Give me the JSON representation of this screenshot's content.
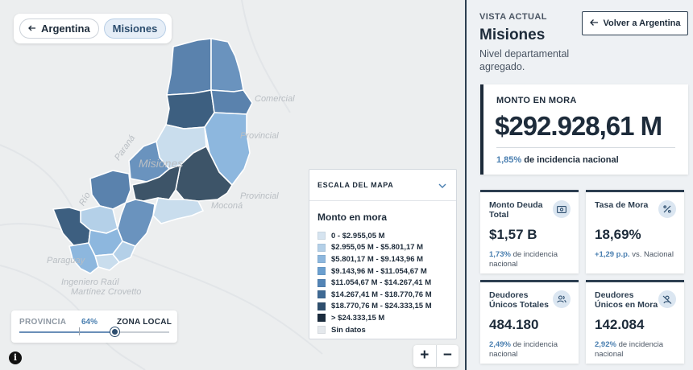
{
  "breadcrumb": {
    "country": "Argentina",
    "province": "Misiones"
  },
  "map_labels": {
    "a": "Comercial",
    "b": "Provincial",
    "c": "Provincial",
    "d": "Moconá",
    "e": "Paraná",
    "f": "Misiones",
    "g": "Río",
    "h": "Paraguay",
    "i": "Ingeniero Raúl",
    "j": "Martínez Crovetto"
  },
  "slider": {
    "left_label": "PROVINCIA",
    "value": "64%",
    "value_fraction": 0.64,
    "right_label": "ZONA LOCAL"
  },
  "zoom": {
    "in": "+",
    "out": "−"
  },
  "info": "i",
  "legend": {
    "header": "ESCALA DEL MAPA",
    "title": "Monto en mora",
    "items": [
      {
        "label": "0 - $2.955,05 M",
        "color": "#d6e4f0"
      },
      {
        "label": "$2.955,05 M - $5.801,17 M",
        "color": "#b4d0e8"
      },
      {
        "label": "$5.801,17 M - $9.143,96 M",
        "color": "#8db7de"
      },
      {
        "label": "$9.143,96 M - $11.054,67 M",
        "color": "#6b9fcf"
      },
      {
        "label": "$11.054,67 M - $14.267,41 M",
        "color": "#5384b5"
      },
      {
        "label": "$14.267,41 M - $18.770,76 M",
        "color": "#3f6a94"
      },
      {
        "label": "$18.770,76 M - $24.333,15 M",
        "color": "#2f4f6e"
      },
      {
        "label": "> $24.333,15 M",
        "color": "#1b2c3e"
      },
      {
        "label": "Sin datos",
        "color": "#e4e8ec"
      }
    ]
  },
  "panel": {
    "kicker": "VISTA ACTUAL",
    "title": "Misiones",
    "subtitle": "Nivel departamental agregado.",
    "back_button": "Volver a Argentina",
    "hero": {
      "label": "MONTO EN MORA",
      "value": "$292.928,61 M",
      "pct": "1,85%",
      "pct_text": "de incidencia nacional"
    },
    "cards": [
      {
        "label": "Monto Deuda Total",
        "value": "$1,57 B",
        "acc": "1,73%",
        "foot": "de incidencia nacional",
        "icon": "money-icon"
      },
      {
        "label": "Tasa de Mora",
        "value": "18,69%",
        "acc": "+1,29 p.p.",
        "foot": "vs. Nacional",
        "icon": "percent-icon"
      },
      {
        "label": "Deudores Únicos Totales",
        "value": "484.180",
        "acc": "2,49%",
        "foot": "de incidencia nacional",
        "icon": "users-icon"
      },
      {
        "label": "Deudores Únicos en Mora",
        "value": "142.084",
        "acc": "2,92%",
        "foot": "de incidencia nacional",
        "icon": "user-off-icon"
      }
    ]
  }
}
